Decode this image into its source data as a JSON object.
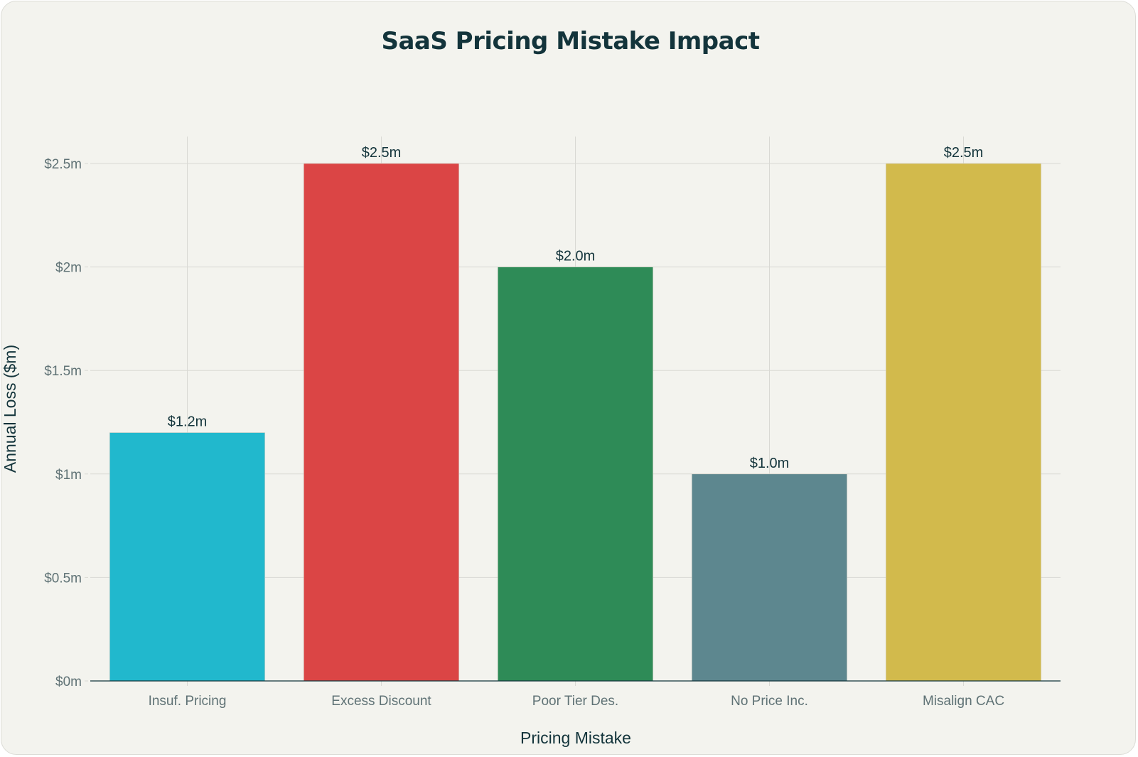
{
  "chart_data": {
    "type": "bar",
    "title": "SaaS Pricing Mistake Impact",
    "xlabel": "Pricing Mistake",
    "ylabel": "Annual Loss ($m)",
    "categories": [
      "Insuf. Pricing",
      "Excess Discount",
      "Poor Tier Des.",
      "No Price Inc.",
      "Misalign CAC"
    ],
    "values": [
      1.2,
      2.5,
      2.0,
      1.0,
      2.5
    ],
    "data_labels": [
      "$1.2m",
      "$2.5m",
      "$2.0m",
      "$1.0m",
      "$2.5m"
    ],
    "colors": [
      "#21B8CD",
      "#DB4545",
      "#2E8B57",
      "#5D878F",
      "#D2BA4C"
    ],
    "yticks": [
      0,
      0.5,
      1,
      1.5,
      2,
      2.5
    ],
    "ytick_labels": [
      "$0m",
      "$0.5m",
      "$1m",
      "$1.5m",
      "$2m",
      "$2.5m"
    ],
    "ylim": [
      0,
      2.63
    ],
    "grid": true,
    "legend": "none"
  }
}
